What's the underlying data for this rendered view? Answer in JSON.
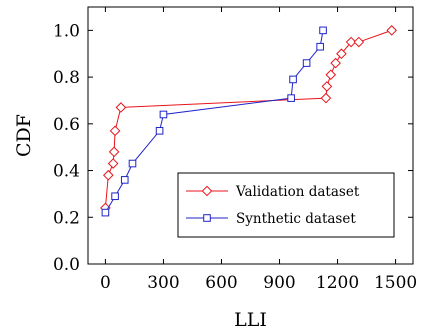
{
  "chart_data": {
    "type": "line",
    "xlabel": "LLI",
    "ylabel": "CDF",
    "xlim": [
      -90,
      1590
    ],
    "ylim": [
      0,
      1.1
    ],
    "x_ticks": [
      0,
      300,
      600,
      900,
      1200,
      1500
    ],
    "x_tick_labels": [
      "0",
      "300",
      "600",
      "900",
      "1200",
      "1500"
    ],
    "y_ticks": [
      0,
      0.2,
      0.4,
      0.6,
      0.8,
      1.0
    ],
    "y_tick_labels": [
      "0.0",
      "0.2",
      "0.4",
      "0.6",
      "0.8",
      "1.0"
    ],
    "grid": false,
    "legend_position": "bottom-right",
    "series": [
      {
        "name": "Validation dataset",
        "color": "#e8151b",
        "marker": "diamond",
        "x": [
          0,
          15,
          40,
          45,
          50,
          80,
          1140,
          1145,
          1165,
          1190,
          1220,
          1270,
          1310,
          1480
        ],
        "y": [
          0.24,
          0.38,
          0.43,
          0.48,
          0.57,
          0.67,
          0.71,
          0.76,
          0.81,
          0.86,
          0.9,
          0.95,
          0.95,
          1.0
        ]
      },
      {
        "name": "Synthetic dataset",
        "color": "#1f24c8",
        "marker": "square",
        "x": [
          0,
          50,
          100,
          140,
          280,
          300,
          960,
          970,
          1040,
          1110,
          1125
        ],
        "y": [
          0.22,
          0.29,
          0.36,
          0.43,
          0.57,
          0.64,
          0.71,
          0.79,
          0.86,
          0.93,
          1.0
        ]
      }
    ]
  }
}
